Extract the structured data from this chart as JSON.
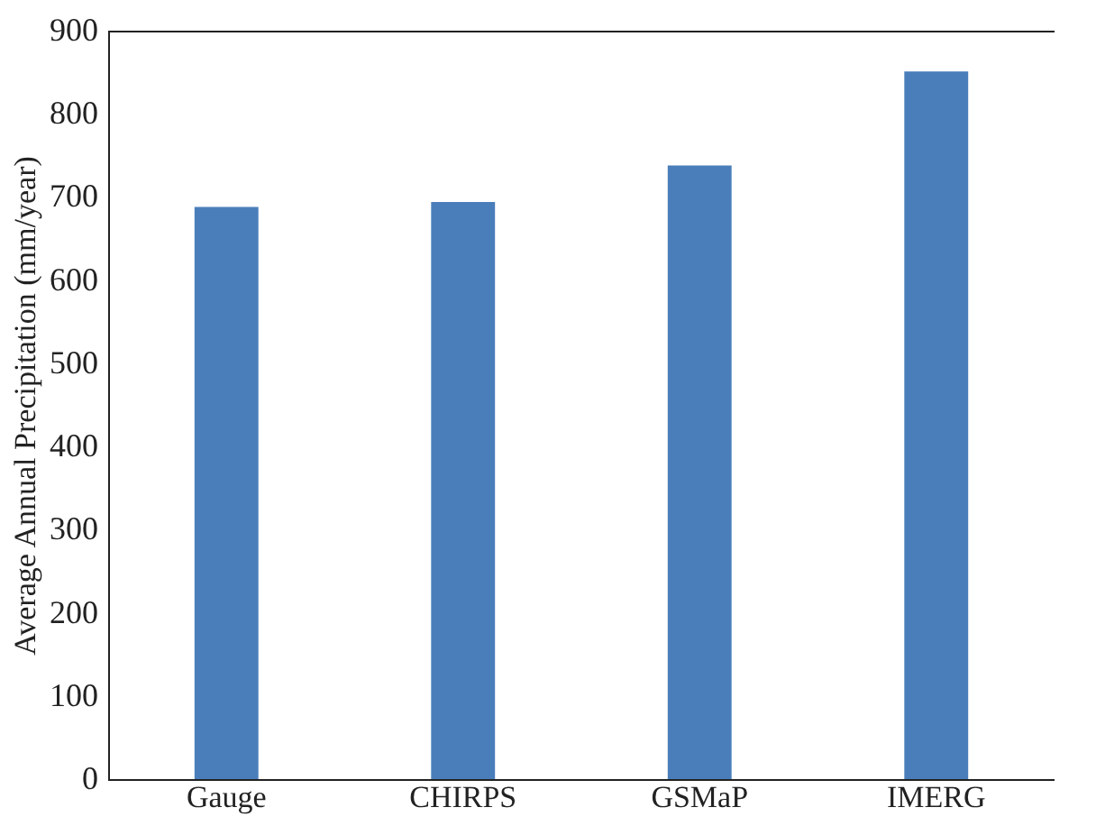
{
  "chart_data": {
    "type": "bar",
    "ylabel": "Average Annual Precipitation (mm/year)",
    "categories": [
      "Gauge",
      "CHIRPS",
      "GSMaP",
      "IMERG"
    ],
    "values": [
      688,
      694,
      738,
      851
    ],
    "color": "#4a7ebb",
    "ylim": [
      0,
      900
    ],
    "yticks": [
      0,
      100,
      200,
      300,
      400,
      500,
      600,
      700,
      800,
      900
    ],
    "grid": false
  }
}
